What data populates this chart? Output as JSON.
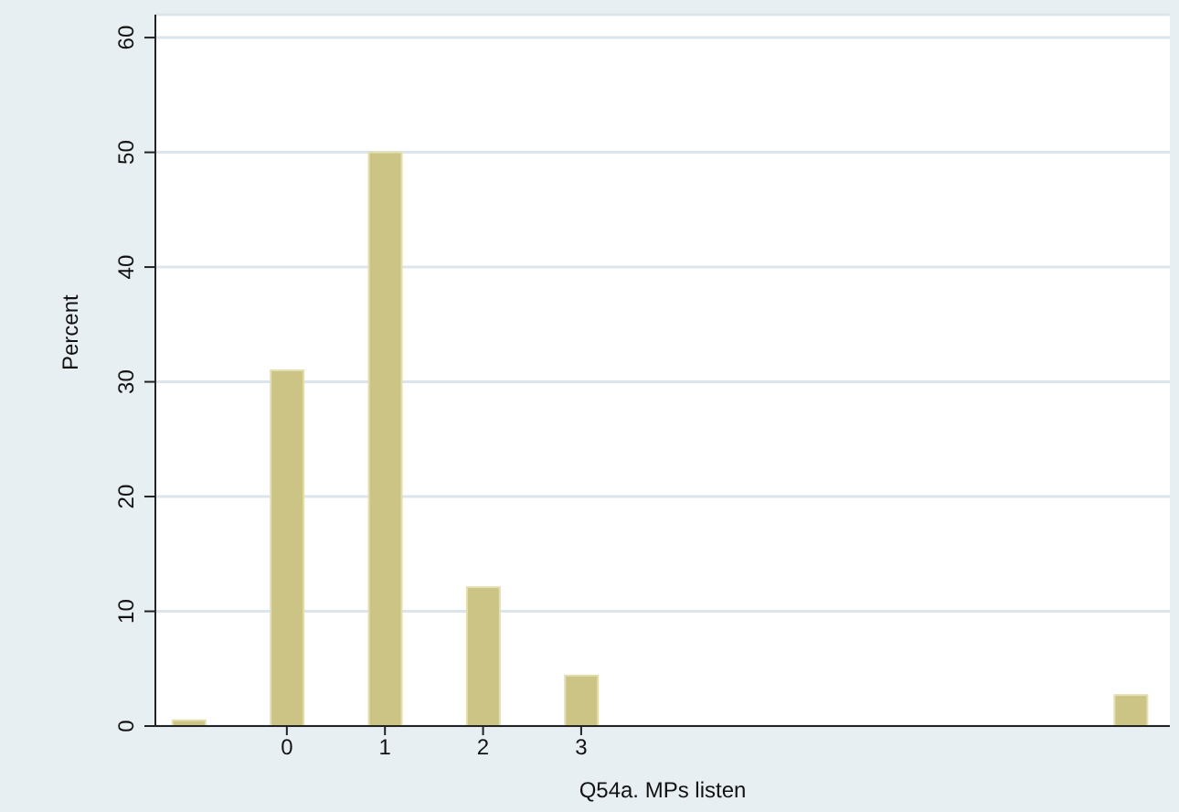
{
  "chart_data": {
    "type": "bar",
    "xlabel": "Q54a. MPs listen",
    "ylabel": "Percent",
    "x": [
      -1,
      0,
      1,
      2,
      3,
      8.6
    ],
    "series": [
      {
        "color": "#ccc484",
        "values": [
          0.5,
          31,
          50,
          12.1,
          4.4,
          2.7
        ]
      }
    ],
    "xlim": [
      -1.34,
      9
    ],
    "xticks": [
      0,
      1,
      2,
      3
    ],
    "ylim": [
      0,
      62
    ],
    "yticks": [
      0,
      10,
      20,
      30,
      40,
      50,
      60
    ],
    "grid": "y"
  }
}
